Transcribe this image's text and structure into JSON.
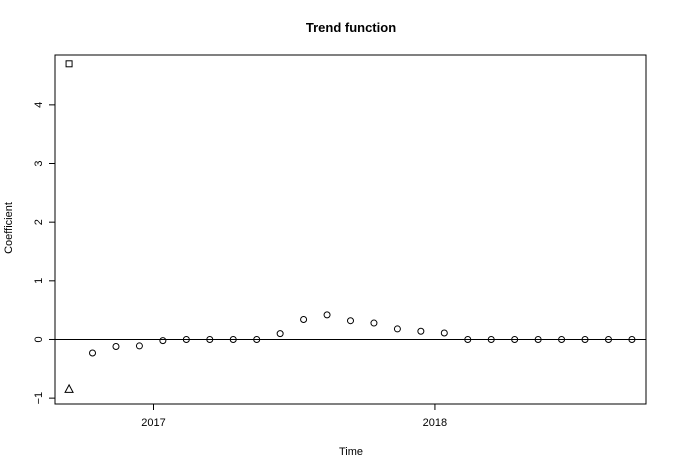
{
  "chart_data": {
    "type": "scatter",
    "title": "Trend function",
    "xlabel": "Time",
    "ylabel": "Coefficient",
    "xlim": [
      2016.65,
      2018.75
    ],
    "ylim": [
      -1.1,
      4.85
    ],
    "x_ticks": [
      {
        "value": 2017,
        "label": "2017"
      },
      {
        "value": 2018,
        "label": "2018"
      }
    ],
    "y_ticks": [
      {
        "value": -1,
        "label": "−1"
      },
      {
        "value": 0,
        "label": "0"
      },
      {
        "value": 1,
        "label": "1"
      },
      {
        "value": 2,
        "label": "2"
      },
      {
        "value": 3,
        "label": "3"
      },
      {
        "value": 4,
        "label": "4"
      }
    ],
    "reference_line_y": 0,
    "series": [
      {
        "marker": "square",
        "points": [
          {
            "x": 2016.7,
            "y": 4.7
          }
        ]
      },
      {
        "marker": "triangle",
        "points": [
          {
            "x": 2016.7,
            "y": -0.85
          }
        ]
      },
      {
        "marker": "circle",
        "points": [
          {
            "x": 2016.7833,
            "y": -0.23
          },
          {
            "x": 2016.8667,
            "y": -0.12
          },
          {
            "x": 2016.95,
            "y": -0.11
          },
          {
            "x": 2017.0333,
            "y": -0.02
          },
          {
            "x": 2017.1167,
            "y": 0.0
          },
          {
            "x": 2017.2,
            "y": 0.0
          },
          {
            "x": 2017.2833,
            "y": 0.0
          },
          {
            "x": 2017.3667,
            "y": 0.0
          },
          {
            "x": 2017.45,
            "y": 0.1
          },
          {
            "x": 2017.5333,
            "y": 0.34
          },
          {
            "x": 2017.6167,
            "y": 0.42
          },
          {
            "x": 2017.7,
            "y": 0.32
          },
          {
            "x": 2017.7833,
            "y": 0.28
          },
          {
            "x": 2017.8667,
            "y": 0.18
          },
          {
            "x": 2017.95,
            "y": 0.14
          },
          {
            "x": 2018.0333,
            "y": 0.11
          },
          {
            "x": 2018.1167,
            "y": 0.0
          },
          {
            "x": 2018.2,
            "y": 0.0
          },
          {
            "x": 2018.2833,
            "y": 0.0
          },
          {
            "x": 2018.3667,
            "y": 0.0
          },
          {
            "x": 2018.45,
            "y": 0.0
          },
          {
            "x": 2018.5333,
            "y": 0.0
          },
          {
            "x": 2018.6167,
            "y": 0.0
          },
          {
            "x": 2018.7,
            "y": 0.0
          }
        ]
      }
    ]
  }
}
